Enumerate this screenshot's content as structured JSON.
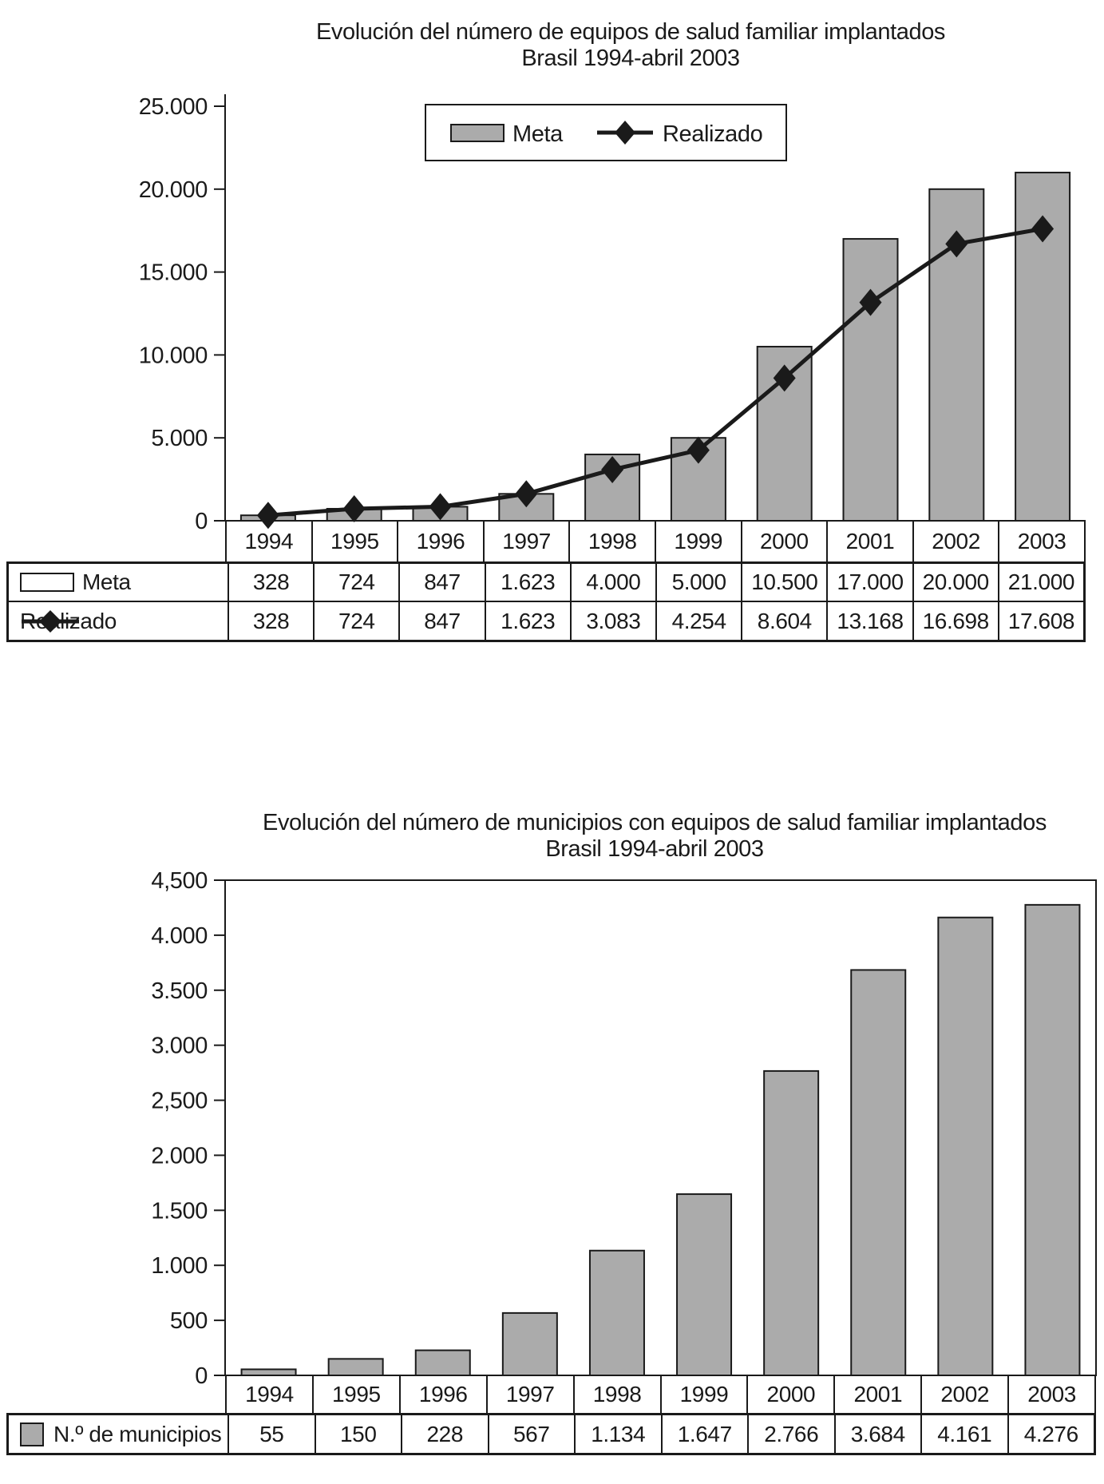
{
  "page_background": "#ffffff",
  "ink_color": "#1a1a1a",
  "bar_fill_color": "#ababab",
  "chart1": {
    "title_line1": "Evolución del número de equipos de salud familiar implantados",
    "title_line2": "Brasil 1994-abril 2003",
    "legend": {
      "meta_label": "Meta",
      "realizado_label": "Realizado"
    }
  },
  "chart2": {
    "title_line1": "Evolución del número de municipios con equipos de salud familiar implantados",
    "title_line2": "Brasil 1994-abril 2003"
  },
  "chart_data": [
    {
      "type": "bar",
      "subtype": "bar+line-combo",
      "title": "Evolución del número de equipos de salud familiar implantados",
      "subtitle": "Brasil 1994-abril 2003",
      "categories": [
        "1994",
        "1995",
        "1996",
        "1997",
        "1998",
        "1999",
        "2000",
        "2001",
        "2002",
        "2003"
      ],
      "series": [
        {
          "name": "Meta",
          "type": "bar",
          "values": [
            328,
            724,
            847,
            1623,
            4000,
            5000,
            10500,
            17000,
            20000,
            21000
          ]
        },
        {
          "name": "Realizado",
          "type": "line",
          "marker": "diamond",
          "values": [
            328,
            724,
            847,
            1623,
            3083,
            4254,
            8604,
            13168,
            16698,
            17608
          ]
        }
      ],
      "xlabel": "",
      "ylabel": "",
      "ylim": [
        0,
        25000
      ],
      "y_tick_labels": [
        "25.000",
        "20.000",
        "15.000",
        "10.000",
        "5.000",
        "0"
      ],
      "grid": false,
      "legend_position": "top-center",
      "frame": "left-bottom-only"
    },
    {
      "type": "bar",
      "title": "Evolución del número de municipios con equipos de salud familiar implantados",
      "subtitle": "Brasil 1994-abril 2003",
      "categories": [
        "1994",
        "1995",
        "1996",
        "1997",
        "1998",
        "1999",
        "2000",
        "2001",
        "2002",
        "2003"
      ],
      "series": [
        {
          "name": "N.º de municipios",
          "type": "bar",
          "values": [
            55,
            150,
            228,
            567,
            1134,
            1647,
            2766,
            3684,
            4161,
            4276
          ]
        }
      ],
      "xlabel": "",
      "ylabel": "",
      "ylim": [
        0,
        4500
      ],
      "y_tick_labels": [
        "4,500",
        "4.000",
        "3.500",
        "3.000",
        "2,500",
        "2.000",
        "1.500",
        "1.000",
        "500",
        "0"
      ],
      "grid": false,
      "legend_position": "none",
      "frame": "full-box"
    }
  ],
  "table1": {
    "years": [
      "1994",
      "1995",
      "1996",
      "1997",
      "1998",
      "1999",
      "2000",
      "2001",
      "2002",
      "2003"
    ],
    "rows": [
      {
        "label": "Meta",
        "values": [
          "328",
          "724",
          "847",
          "1.623",
          "4.000",
          "5.000",
          "10.500",
          "17.000",
          "20.000",
          "21.000"
        ]
      },
      {
        "label": "Realizado",
        "values": [
          "328",
          "724",
          "847",
          "1.623",
          "3.083",
          "4.254",
          "8.604",
          "13.168",
          "16.698",
          "17.608"
        ]
      }
    ]
  },
  "table2": {
    "years": [
      "1994",
      "1995",
      "1996",
      "1997",
      "1998",
      "1999",
      "2000",
      "2001",
      "2002",
      "2003"
    ],
    "rows": [
      {
        "label": "N.º de municipios",
        "values": [
          "55",
          "150",
          "228",
          "567",
          "1.134",
          "1.647",
          "2.766",
          "3.684",
          "4.161",
          "4.276"
        ]
      }
    ]
  }
}
